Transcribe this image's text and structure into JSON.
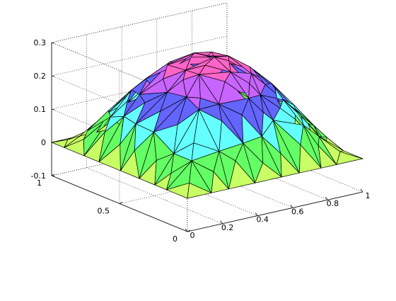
{
  "chart_data": {
    "type": "surface",
    "title": "",
    "xlabel": "",
    "ylabel": "",
    "zlabel": "",
    "x_ticks": [
      "0",
      "0.2",
      "0.4",
      "0.6",
      "0.8",
      "1"
    ],
    "y_ticks": [
      "0",
      "0.5",
      "1"
    ],
    "z_ticks": [
      "-0.1",
      "0",
      "0.1",
      "0.2",
      "0.3"
    ],
    "xlim": [
      0,
      1
    ],
    "ylim": [
      0,
      1
    ],
    "zlim": [
      -0.1,
      0.3
    ],
    "grid": true,
    "box": "open-dotted",
    "surface": "unstructured triangular mesh of z = 4.6·x(1−x)·y(1−y) on the unit square, roughly 0 on the boundary rising to about 0.28 at (0.5, 0.5)",
    "z_max": 0.28,
    "colors": [
      "#FF6464",
      "#C8FF64",
      "#64FF64",
      "#64FFFF",
      "#6464FF",
      "#C864FF",
      "#FF64C8"
    ]
  }
}
